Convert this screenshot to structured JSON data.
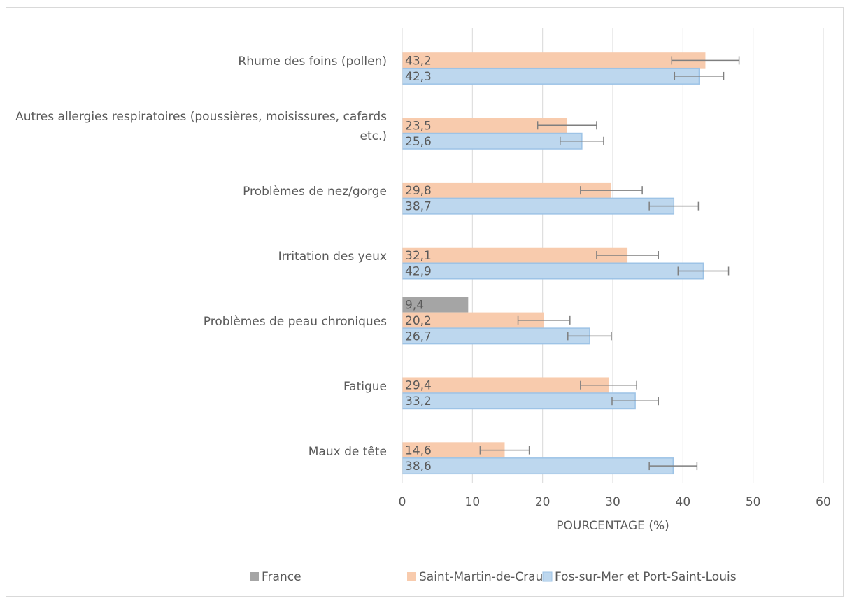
{
  "chart_data": {
    "type": "hbar",
    "categories": [
      "Rhume des foins (pollen)",
      "Autres allergies respiratoires (poussières, moisissures, cafards etc.)",
      "Problèmes de nez/gorge",
      "Irritation des yeux",
      "Problèmes de peau chroniques",
      "Fatigue",
      "Maux de tête"
    ],
    "series": [
      {
        "name": "France",
        "color": "#a5a5a5",
        "values": [
          null,
          null,
          null,
          null,
          9.4,
          null,
          null
        ],
        "value_labels": [
          null,
          null,
          null,
          null,
          "9,4",
          null,
          null
        ]
      },
      {
        "name": "Saint-Martin-de-Crau",
        "color": "#f8cbad",
        "values": [
          43.2,
          23.5,
          29.8,
          32.1,
          20.2,
          29.4,
          14.6
        ],
        "value_labels": [
          "43,2",
          "23,5",
          "29,8",
          "32,1",
          "20,2",
          "29,4",
          "14,6"
        ],
        "errors": [
          4.8,
          4.2,
          4.4,
          4.4,
          3.7,
          4.0,
          3.5
        ]
      },
      {
        "name": "Fos-sur-Mer et Port-Saint-Louis",
        "color": "#bdd7ee",
        "stroke": "#9dc3e6",
        "values": [
          42.3,
          25.6,
          38.7,
          42.9,
          26.7,
          33.2,
          38.6
        ],
        "value_labels": [
          "42,3",
          "25,6",
          "38,7",
          "42,9",
          "26,7",
          "33,2",
          "38,6"
        ],
        "errors": [
          3.5,
          3.1,
          3.5,
          3.6,
          3.1,
          3.3,
          3.4
        ]
      }
    ],
    "xlabel": "POURCENTAGE (%)",
    "xlim": [
      0,
      60
    ],
    "xticks": [
      0,
      10,
      20,
      30,
      40,
      50,
      60
    ],
    "grid": true,
    "legend": "bottom",
    "error_color": "#7f7f7f"
  }
}
